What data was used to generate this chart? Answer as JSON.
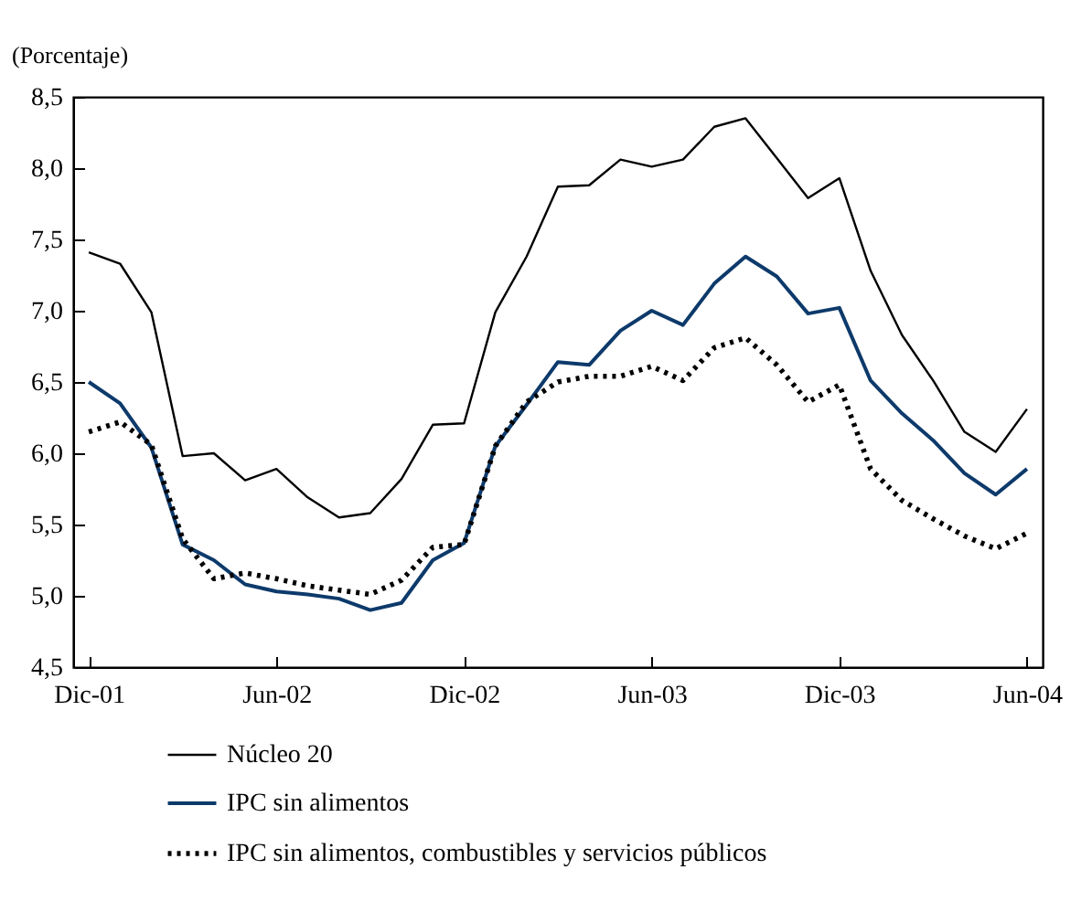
{
  "chart_data": {
    "type": "line",
    "ylabel": "(Porcentaje)",
    "categories": [
      "Dic-01",
      null,
      null,
      null,
      null,
      null,
      "Jun-02",
      null,
      null,
      null,
      null,
      null,
      "Dic-02",
      null,
      null,
      null,
      null,
      null,
      "Jun-03",
      null,
      null,
      null,
      null,
      null,
      "Dic-03",
      null,
      null,
      null,
      null,
      null,
      "Jun-04"
    ],
    "series": [
      {
        "name": "Núcleo 20",
        "color": "#000000",
        "line_style": "solid",
        "values": [
          7.41,
          7.33,
          6.99,
          5.98,
          6.0,
          5.81,
          5.89,
          5.69,
          5.55,
          5.58,
          5.82,
          6.2,
          6.21,
          6.99,
          7.38,
          7.87,
          7.88,
          8.06,
          8.01,
          8.06,
          8.29,
          8.35,
          8.07,
          7.79,
          7.93,
          7.28,
          6.83,
          6.51,
          6.15,
          6.01,
          6.31
        ]
      },
      {
        "name": "IPC sin alimentos",
        "color": "#0d3a6b",
        "line_style": "solid",
        "values": [
          6.5,
          6.35,
          6.04,
          5.36,
          5.25,
          5.08,
          5.03,
          5.01,
          4.98,
          4.9,
          4.95,
          5.25,
          5.37,
          6.05,
          6.34,
          6.64,
          6.62,
          6.86,
          7.0,
          6.9,
          7.19,
          7.38,
          7.24,
          6.98,
          7.02,
          6.51,
          6.28,
          6.09,
          5.86,
          5.71,
          5.89
        ]
      },
      {
        "name": "IPC sin alimentos, combustibles y servicios públicos",
        "color": "#000000",
        "line_style": "dotted",
        "values": [
          6.15,
          6.22,
          6.06,
          5.4,
          5.12,
          5.16,
          5.12,
          5.07,
          5.04,
          5.01,
          5.11,
          5.34,
          5.36,
          6.05,
          6.36,
          6.5,
          6.54,
          6.54,
          6.61,
          6.51,
          6.74,
          6.81,
          6.62,
          6.36,
          6.48,
          5.89,
          5.67,
          5.54,
          5.42,
          5.33,
          5.44
        ]
      }
    ],
    "ylim": [
      4.5,
      8.5
    ],
    "yticks": [
      {
        "value": 4.5,
        "label": "4,5"
      },
      {
        "value": 5,
        "label": "5,0"
      },
      {
        "value": 5.5,
        "label": "5,5"
      },
      {
        "value": 6,
        "label": "6,0"
      },
      {
        "value": 6.5,
        "label": "6,5"
      },
      {
        "value": 7,
        "label": "7,0"
      },
      {
        "value": 7.5,
        "label": "7,5"
      },
      {
        "value": 8,
        "label": "8,0"
      },
      {
        "value": 8.5,
        "label": "8,5"
      }
    ],
    "grid": false,
    "legend": "bottom",
    "marker": "none"
  }
}
